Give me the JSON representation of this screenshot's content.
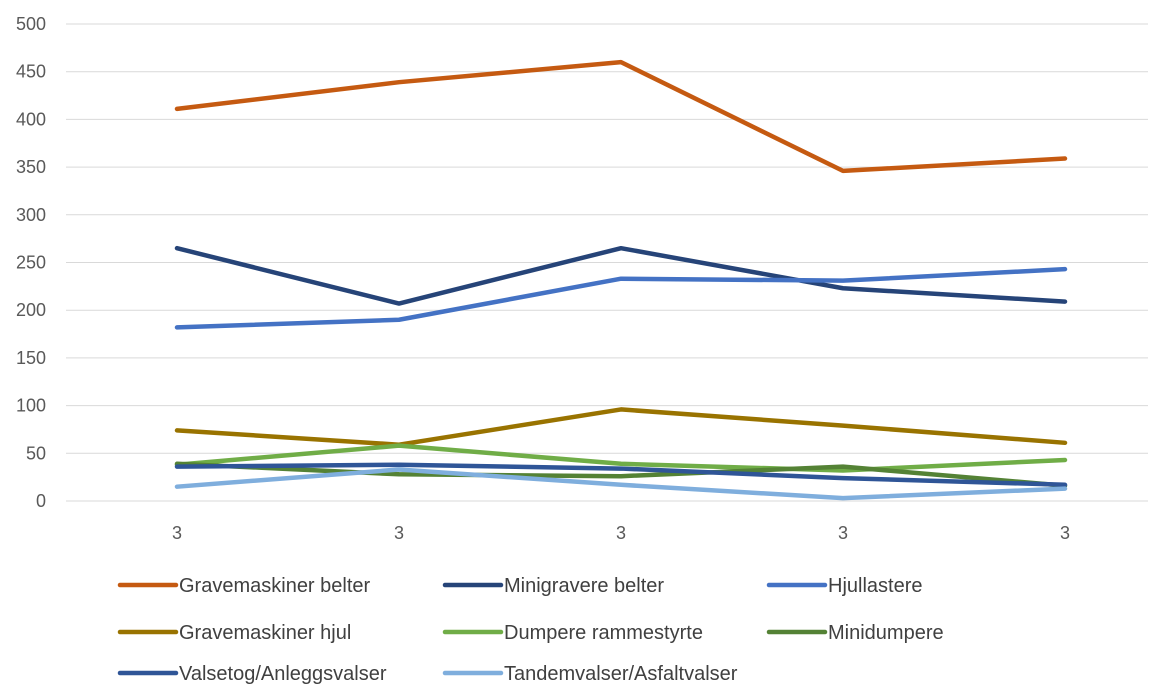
{
  "chart_data": {
    "type": "line",
    "title": "",
    "xlabel": "",
    "ylabel": "",
    "categories": [
      "3",
      "3",
      "3",
      "3",
      "3"
    ],
    "ylim": [
      0,
      500
    ],
    "y_ticks": [
      "0",
      "50",
      "100",
      "150",
      "200",
      "250",
      "300",
      "350",
      "400",
      "450",
      "500"
    ],
    "grid": "horizontal",
    "legend_position": "bottom",
    "series": [
      {
        "name": "Gravemaskiner belter",
        "color": "#C55A11",
        "values": [
          411,
          439,
          460,
          346,
          359
        ]
      },
      {
        "name": "Minigravere belter",
        "color": "#264478",
        "values": [
          265,
          207,
          265,
          223,
          209
        ]
      },
      {
        "name": "Hjullastere",
        "color": "#4472C4",
        "values": [
          182,
          190,
          233,
          231,
          243
        ]
      },
      {
        "name": "Gravemaskiner hjul",
        "color": "#997300",
        "values": [
          74,
          59,
          96,
          79,
          61
        ]
      },
      {
        "name": "Dumpere rammestyrte",
        "color": "#70AD47",
        "values": [
          38,
          58,
          39,
          32,
          43
        ]
      },
      {
        "name": "Minidumpere",
        "color": "#548235",
        "values": [
          39,
          28,
          26,
          36,
          16
        ]
      },
      {
        "name": "Valsetog/Anleggsvalser",
        "color": "#2F5597",
        "values": [
          36,
          38,
          34,
          24,
          17
        ]
      },
      {
        "name": "Tandemvalser/Asfaltvalser",
        "color": "#7FAEDD",
        "values": [
          15,
          33,
          17,
          3,
          13
        ]
      }
    ]
  }
}
